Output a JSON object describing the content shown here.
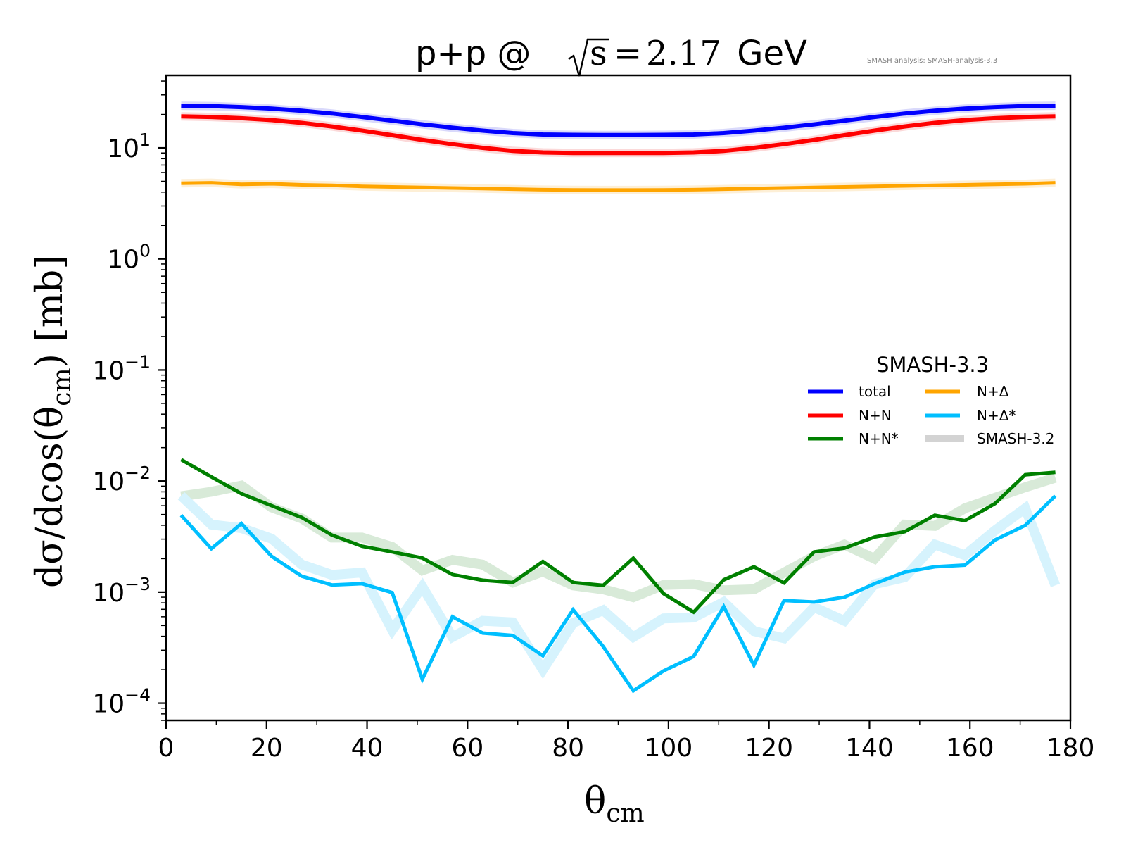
{
  "chart_data": {
    "type": "line",
    "title_parts": {
      "prefix": "p+p @ ",
      "sqrt_symbol": "√",
      "sqrt_var": "s",
      "equals": " = ",
      "energy_value": "2.17",
      "unit": " GeV"
    },
    "title": "p+p @ √s = 2.17 GeV",
    "watermark": "SMASH analysis: SMASH-analysis-3.3",
    "xlabel": {
      "main": "θ",
      "sub": "cm"
    },
    "ylabel": {
      "pre": "dσ/dcos(θ",
      "sub": "cm",
      "post": ") [mb]"
    },
    "xscale": "linear",
    "yscale": "log",
    "xlim": [
      0,
      180
    ],
    "ylim": [
      7e-05,
      45
    ],
    "x_ticks": [
      0,
      20,
      40,
      60,
      80,
      100,
      120,
      140,
      160,
      180
    ],
    "x_tick_labels": [
      "0",
      "20",
      "40",
      "60",
      "80",
      "100",
      "120",
      "140",
      "160",
      "180"
    ],
    "y_ticks": [
      {
        "value": 10,
        "base": "10",
        "exp": "1"
      },
      {
        "value": 1,
        "base": "10",
        "exp": "0"
      },
      {
        "value": 0.1,
        "base": "10",
        "exp": "−1"
      },
      {
        "value": 0.01,
        "base": "10",
        "exp": "−2"
      },
      {
        "value": 0.001,
        "base": "10",
        "exp": "−3"
      },
      {
        "value": 0.0001,
        "base": "10",
        "exp": "−4"
      }
    ],
    "grid": false,
    "legend": {
      "title": "SMASH-3.3",
      "placement": "center-right",
      "columns": 2,
      "entries": [
        {
          "label": "total",
          "series": "total"
        },
        {
          "label": "N+N",
          "series": "NN"
        },
        {
          "label": "N+N*",
          "series": "NNstar"
        },
        {
          "label": "N+Δ",
          "series": "NDelta"
        },
        {
          "label": "N+Δ*",
          "series": "NDeltastar"
        },
        {
          "label": "SMASH-3.2",
          "series": "reference"
        }
      ]
    },
    "x": [
      3,
      9,
      15,
      21,
      27,
      33,
      39,
      45,
      51,
      57,
      63,
      69,
      75,
      81,
      87,
      93,
      99,
      105,
      111,
      117,
      123,
      129,
      135,
      141,
      147,
      153,
      159,
      165,
      171,
      177
    ],
    "series": [
      {
        "id": "total",
        "name": "total",
        "color": "#0000ff",
        "version": "SMASH-3.3",
        "values": [
          24.0,
          23.8,
          23.3,
          22.6,
          21.6,
          20.4,
          19.0,
          17.6,
          16.3,
          15.2,
          14.3,
          13.6,
          13.2,
          13.1,
          13.05,
          13.05,
          13.1,
          13.2,
          13.6,
          14.3,
          15.2,
          16.3,
          17.6,
          19.0,
          20.4,
          21.6,
          22.6,
          23.3,
          23.8,
          24.0
        ]
      },
      {
        "id": "NN",
        "name": "N+N",
        "color": "#ff0000",
        "version": "SMASH-3.3",
        "values": [
          19.2,
          19.0,
          18.5,
          17.8,
          16.8,
          15.6,
          14.3,
          13.0,
          11.8,
          10.8,
          10.0,
          9.4,
          9.1,
          9.0,
          9.0,
          9.0,
          9.0,
          9.1,
          9.4,
          10.0,
          10.8,
          11.8,
          13.0,
          14.3,
          15.6,
          16.8,
          17.8,
          18.5,
          19.0,
          19.2
        ]
      },
      {
        "id": "NNstar",
        "name": "N+N*",
        "color": "#008000",
        "version": "SMASH-3.3",
        "values": [
          0.0156,
          0.0109,
          0.0077,
          0.006,
          0.0047,
          0.00326,
          0.00259,
          0.0023,
          0.00203,
          0.00144,
          0.00128,
          0.00122,
          0.00189,
          0.00122,
          0.00115,
          0.00202,
          0.00097,
          0.00066,
          0.00129,
          0.00169,
          0.00121,
          0.0023,
          0.00249,
          0.00313,
          0.0035,
          0.00492,
          0.0044,
          0.00627,
          0.0114,
          0.012
        ]
      },
      {
        "id": "NDelta",
        "name": "N+Δ",
        "color": "#ffa500",
        "version": "SMASH-3.3",
        "values": [
          4.8,
          4.85,
          4.7,
          4.75,
          4.65,
          4.6,
          4.5,
          4.45,
          4.4,
          4.35,
          4.3,
          4.25,
          4.2,
          4.18,
          4.17,
          4.17,
          4.18,
          4.2,
          4.25,
          4.3,
          4.35,
          4.4,
          4.45,
          4.5,
          4.55,
          4.6,
          4.65,
          4.7,
          4.75,
          4.85
        ]
      },
      {
        "id": "NDeltastar",
        "name": "N+Δ*",
        "color": "#00bfff",
        "version": "SMASH-3.3",
        "values": [
          0.00492,
          0.00246,
          0.00415,
          0.0021,
          0.00139,
          0.00116,
          0.00119,
          0.00099,
          0.000164,
          0.0006,
          0.000428,
          0.000407,
          0.000267,
          0.000695,
          0.000324,
          0.000129,
          0.000195,
          0.000263,
          0.00074,
          0.00022,
          0.00084,
          0.000815,
          0.0009,
          0.00119,
          0.00151,
          0.00169,
          0.00175,
          0.00295,
          0.00399,
          0.00736
        ]
      },
      {
        "id": "NNstar_ref",
        "name": "N+N* (SMASH-3.2)",
        "color": "#d8ead8",
        "version": "SMASH-3.2",
        "values": [
          0.0073,
          0.008,
          0.0091,
          0.0058,
          0.0046,
          0.0031,
          0.0031,
          0.00255,
          0.00157,
          0.00195,
          0.00177,
          0.00122,
          0.00153,
          0.00115,
          0.00106,
          0.0009,
          0.00116,
          0.00118,
          0.00104,
          0.00106,
          0.0015,
          0.0021,
          0.00268,
          0.002,
          0.00406,
          0.00395,
          0.00569,
          0.00708,
          0.0088,
          0.0107
        ]
      },
      {
        "id": "NDeltastar_ref",
        "name": "N+Δ* (SMASH-3.2)",
        "color": "#d6f3fd",
        "version": "SMASH-3.2",
        "values": [
          0.00736,
          0.00406,
          0.00377,
          0.00303,
          0.00177,
          0.00143,
          0.0015,
          0.000455,
          0.00112,
          0.000394,
          0.000552,
          0.000534,
          0.0002,
          0.000527,
          0.000687,
          0.000394,
          0.00058,
          0.00059,
          0.000815,
          0.000445,
          0.000384,
          0.00073,
          0.000552,
          0.00118,
          0.00136,
          0.00268,
          0.00215,
          0.00359,
          0.00569,
          0.00115
        ]
      },
      {
        "id": "total_ref",
        "name": "total (SMASH-3.2)",
        "color": "#d9d9fb",
        "version": "SMASH-3.2",
        "values": [
          24.0,
          23.8,
          23.3,
          22.6,
          21.6,
          20.4,
          19.0,
          17.6,
          16.3,
          15.2,
          14.3,
          13.6,
          13.2,
          13.1,
          13.05,
          13.05,
          13.1,
          13.2,
          13.6,
          14.3,
          15.2,
          16.3,
          17.6,
          19.0,
          20.4,
          21.6,
          22.6,
          23.3,
          23.8,
          24.0
        ]
      },
      {
        "id": "NN_ref",
        "name": "N+N (SMASH-3.2)",
        "color": "#fbd9d9",
        "version": "SMASH-3.2",
        "values": [
          19.2,
          19.0,
          18.5,
          17.8,
          16.8,
          15.6,
          14.3,
          13.0,
          11.8,
          10.8,
          10.0,
          9.4,
          9.1,
          9.0,
          9.0,
          9.0,
          9.0,
          9.1,
          9.4,
          10.0,
          10.8,
          11.8,
          13.0,
          14.3,
          15.6,
          16.8,
          17.8,
          18.5,
          19.0,
          19.2
        ]
      },
      {
        "id": "NDelta_ref",
        "name": "N+Δ (SMASH-3.2)",
        "color": "#fdefd6",
        "version": "SMASH-3.2",
        "values": [
          4.8,
          4.85,
          4.7,
          4.75,
          4.65,
          4.6,
          4.5,
          4.45,
          4.4,
          4.35,
          4.3,
          4.25,
          4.2,
          4.18,
          4.17,
          4.17,
          4.18,
          4.2,
          4.25,
          4.3,
          4.35,
          4.4,
          4.45,
          4.5,
          4.55,
          4.6,
          4.65,
          4.7,
          4.75,
          4.85
        ]
      }
    ],
    "legend_colors": {
      "total": "#0000ff",
      "NN": "#ff0000",
      "NNstar": "#008000",
      "NDelta": "#ffa500",
      "NDeltastar": "#00bfff",
      "reference": "#d3d3d3"
    }
  }
}
